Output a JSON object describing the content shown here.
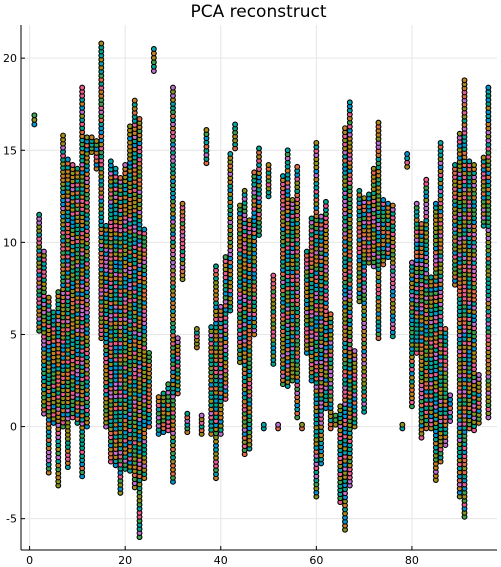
{
  "chart_data": {
    "type": "scatter",
    "title": "PCA reconstruct",
    "xlabel": "",
    "ylabel": "",
    "xlim": [
      -1.8,
      97.8
    ],
    "ylim": [
      -6.7,
      21.8
    ],
    "x_ticks": [
      0,
      20,
      40,
      60,
      80
    ],
    "y_ticks": [
      -5,
      0,
      5,
      10,
      15,
      20
    ],
    "x_tick_labels": [
      "0",
      "20",
      "40",
      "60",
      "80"
    ],
    "y_tick_labels": [
      "-5",
      "0",
      "5",
      "10",
      "15",
      "20"
    ],
    "grid": true,
    "legend": "none",
    "series_colors": [
      "#0099d8",
      "#e36f47",
      "#3ea44e",
      "#c271d2",
      "#ac8d18",
      "#00a9ad",
      "#ed5e93",
      "#c68225",
      "#00a98d",
      "#8e971d"
    ],
    "columns": [
      {
        "x": 1,
        "min": 16.4,
        "max": 16.9
      },
      {
        "x": 2,
        "min": 5.2,
        "max": 11.5
      },
      {
        "x": 3,
        "min": 0.7,
        "max": 9.5
      },
      {
        "x": 4,
        "min": -2.5,
        "max": 7.0
      },
      {
        "x": 5,
        "min": 0.2,
        "max": 6.2
      },
      {
        "x": 6,
        "min": -3.2,
        "max": 7.3
      },
      {
        "x": 7,
        "min": 0.0,
        "max": 15.8
      },
      {
        "x": 8,
        "min": -2.2,
        "max": 14.5
      },
      {
        "x": 9,
        "min": 0.5,
        "max": 14.2
      },
      {
        "x": 10,
        "min": 0.2,
        "max": 14.0
      },
      {
        "x": 11,
        "min": -2.7,
        "max": 18.4
      },
      {
        "x": 12,
        "min": 0.0,
        "max": 15.7
      },
      {
        "x": 13,
        "min": 14.9,
        "max": 15.7
      },
      {
        "x": 14,
        "min": 14.0,
        "max": 15.5
      },
      {
        "x": 15,
        "min": 4.8,
        "max": 20.8
      },
      {
        "x": 16,
        "min": 0.0,
        "max": 10.9
      },
      {
        "x": 17,
        "min": -1.9,
        "max": 14.4
      },
      {
        "x": 18,
        "min": -2.1,
        "max": 14.0
      },
      {
        "x": 19,
        "min": -3.6,
        "max": 13.5
      },
      {
        "x": 20,
        "min": -2.3,
        "max": 14.2
      },
      {
        "x": 21,
        "min": -2.4,
        "max": 16.3
      },
      {
        "x": 22,
        "min": -3.3,
        "max": 17.7
      },
      {
        "x": 23,
        "min": -6.0,
        "max": 16.7
      },
      {
        "x": 24,
        "min": -2.8,
        "max": 10.7
      },
      {
        "x": 25,
        "min": 0.0,
        "max": 4.0
      },
      {
        "x": 26,
        "min": 19.3,
        "max": 20.5
      },
      {
        "x": 27,
        "min": -0.4,
        "max": 1.6
      },
      {
        "x": 28,
        "min": -0.3,
        "max": 1.8
      },
      {
        "x": 29,
        "min": -0.2,
        "max": 2.3
      },
      {
        "x": 30,
        "min": -3.0,
        "max": 18.4
      },
      {
        "x": 31,
        "min": 1.8,
        "max": 4.8
      },
      {
        "x": 32,
        "min": 8.0,
        "max": 12.1
      },
      {
        "x": 33,
        "min": -0.3,
        "max": 0.7
      },
      {
        "x": 35,
        "min": 4.3,
        "max": 5.3
      },
      {
        "x": 36,
        "min": -0.4,
        "max": 0.6
      },
      {
        "x": 37,
        "min": 14.3,
        "max": 16.1
      },
      {
        "x": 38,
        "min": -0.4,
        "max": 5.4
      },
      {
        "x": 39,
        "min": -2.8,
        "max": 8.7
      },
      {
        "x": 40,
        "min": -0.4,
        "max": 6.5
      },
      {
        "x": 41,
        "min": 1.5,
        "max": 9.2
      },
      {
        "x": 42,
        "min": 6.3,
        "max": 14.8
      },
      {
        "x": 43,
        "min": 15.1,
        "max": 16.4
      },
      {
        "x": 44,
        "min": 3.5,
        "max": 12.0
      },
      {
        "x": 45,
        "min": -1.5,
        "max": 12.8
      },
      {
        "x": 46,
        "min": -1.2,
        "max": 11.2
      },
      {
        "x": 47,
        "min": 5.0,
        "max": 13.8
      },
      {
        "x": 48,
        "min": 10.4,
        "max": 15.1
      },
      {
        "x": 49,
        "min": -0.1,
        "max": 0.1
      },
      {
        "x": 50,
        "min": 12.5,
        "max": 14.2
      },
      {
        "x": 51,
        "min": 3.4,
        "max": 8.2
      },
      {
        "x": 52,
        "min": -0.1,
        "max": 0.1
      },
      {
        "x": 53,
        "min": 2.3,
        "max": 13.6
      },
      {
        "x": 54,
        "min": 2.2,
        "max": 15.0
      },
      {
        "x": 55,
        "min": 2.5,
        "max": 12.3
      },
      {
        "x": 56,
        "min": 0.5,
        "max": 14.1
      },
      {
        "x": 57,
        "min": -0.1,
        "max": 0.1
      },
      {
        "x": 58,
        "min": 4.0,
        "max": 9.5
      },
      {
        "x": 59,
        "min": 2.5,
        "max": 11.3
      },
      {
        "x": 60,
        "min": -3.8,
        "max": 15.4
      },
      {
        "x": 61,
        "min": -2.0,
        "max": 11.4
      },
      {
        "x": 62,
        "min": 1.0,
        "max": 12.2
      },
      {
        "x": 63,
        "min": -0.1,
        "max": 6.1
      },
      {
        "x": 64,
        "min": 0.1,
        "max": 0.6
      },
      {
        "x": 65,
        "min": -4.1,
        "max": 1.1
      },
      {
        "x": 66,
        "min": -5.6,
        "max": 16.2
      },
      {
        "x": 67,
        "min": -3.2,
        "max": 17.6
      },
      {
        "x": 68,
        "min": 0.0,
        "max": 4.1
      },
      {
        "x": 69,
        "min": 6.8,
        "max": 12.8
      },
      {
        "x": 70,
        "min": 0.8,
        "max": 12.4
      },
      {
        "x": 71,
        "min": 8.9,
        "max": 12.6
      },
      {
        "x": 72,
        "min": 8.7,
        "max": 14.0
      },
      {
        "x": 73,
        "min": 4.8,
        "max": 16.5
      },
      {
        "x": 74,
        "min": 8.8,
        "max": 12.3
      },
      {
        "x": 75,
        "min": 9.2,
        "max": 12.1
      },
      {
        "x": 76,
        "min": 4.9,
        "max": 12.0
      },
      {
        "x": 78,
        "min": -0.1,
        "max": 0.1
      },
      {
        "x": 79,
        "min": 14.1,
        "max": 14.8
      },
      {
        "x": 80,
        "min": 1.1,
        "max": 8.9
      },
      {
        "x": 81,
        "min": 4.0,
        "max": 12.1
      },
      {
        "x": 82,
        "min": -0.6,
        "max": 11.0
      },
      {
        "x": 83,
        "min": -0.1,
        "max": 13.4
      },
      {
        "x": 84,
        "min": -0.1,
        "max": 8.1
      },
      {
        "x": 85,
        "min": -2.9,
        "max": 12.1
      },
      {
        "x": 86,
        "min": -1.9,
        "max": 15.4
      },
      {
        "x": 87,
        "min": -1.0,
        "max": 5.3
      },
      {
        "x": 88,
        "min": 0.3,
        "max": 1.7
      },
      {
        "x": 89,
        "min": 7.7,
        "max": 14.2
      },
      {
        "x": 90,
        "min": -3.8,
        "max": 15.9
      },
      {
        "x": 91,
        "min": -4.9,
        "max": 18.8
      },
      {
        "x": 92,
        "min": -0.1,
        "max": 14.4
      },
      {
        "x": 93,
        "min": -0.2,
        "max": 14.2
      },
      {
        "x": 94,
        "min": 0.2,
        "max": 2.8
      },
      {
        "x": 95,
        "min": 10.9,
        "max": 14.6
      },
      {
        "x": 96,
        "min": 0.5,
        "max": 18.4
      }
    ]
  }
}
